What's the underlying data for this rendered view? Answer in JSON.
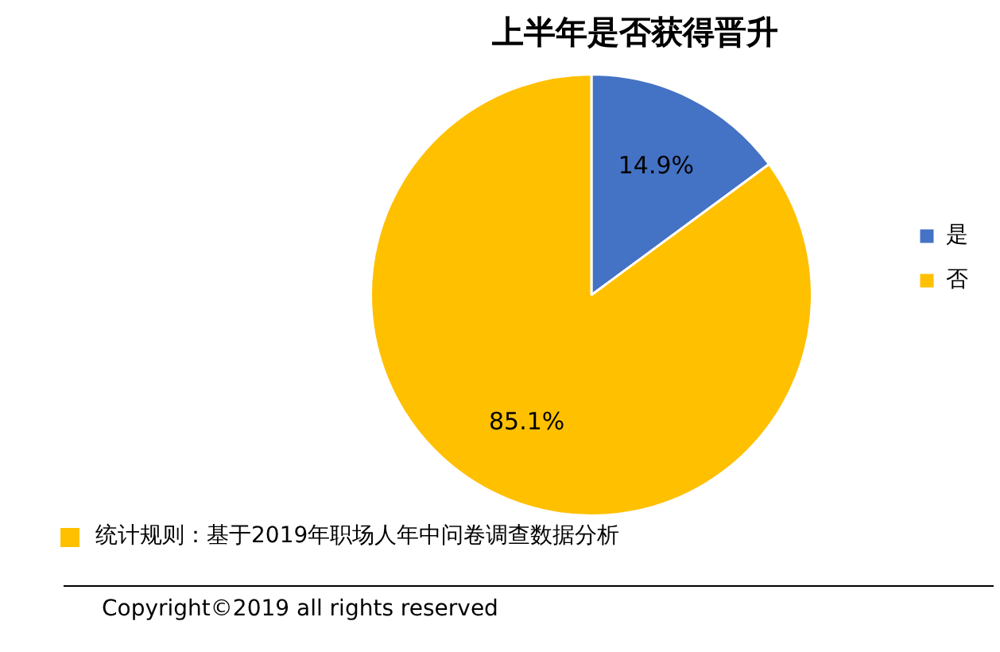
{
  "chart_data": {
    "type": "pie",
    "title": "上半年是否获得晋升",
    "categories": [
      "是",
      "否"
    ],
    "values": [
      14.9,
      85.1
    ],
    "colors": [
      "#4472c4",
      "#ffc000"
    ],
    "value_labels": [
      "14.9%",
      "85.1%"
    ],
    "legend": "right",
    "annotations": [
      "统计规则：基于2019年职场人年中问卷调查数据分析",
      "Copyright©2019 all rights reserved"
    ]
  }
}
